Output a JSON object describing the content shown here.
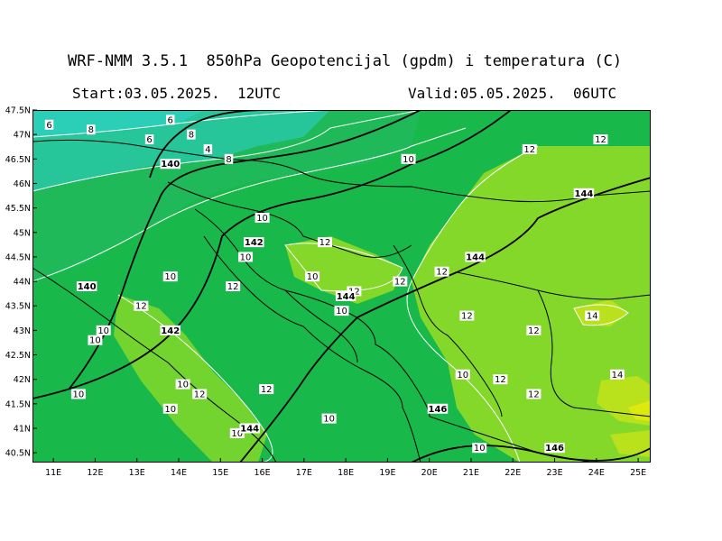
{
  "header": {
    "title": "WRF-NMM 3.5.1  850hPa Geopotencijal (gpdm) i temperatura (C)",
    "start": "Start:03.05.2025.  12UTC",
    "valid": "Valid:05.05.2025.  06UTC"
  },
  "map": {
    "lon_range": [
      10.5,
      25.3
    ],
    "lat_range": [
      40.3,
      47.5
    ],
    "lon_ticks": [
      "11E",
      "12E",
      "13E",
      "14E",
      "15E",
      "16E",
      "17E",
      "18E",
      "19E",
      "20E",
      "21E",
      "22E",
      "23E",
      "24E",
      "25E"
    ],
    "lat_ticks": [
      "47.5N",
      "47N",
      "46.5N",
      "46N",
      "45.5N",
      "45N",
      "44.5N",
      "44N",
      "43.5N",
      "43N",
      "42.5N",
      "42N",
      "41.5N",
      "41N",
      "40.5N"
    ],
    "colors": {
      "t6": "#27c59a",
      "t4": "#2bcfb7",
      "t8": "#1fb95a",
      "t10": "#19b84b",
      "t12": "#84d82a",
      "t14": "#b9e21c",
      "t16": "#dcea0d",
      "frame": "#000000",
      "border": "#000000",
      "temp_contour": "#ffffff"
    },
    "temperature_labels": [
      {
        "text": "6",
        "lon": 10.9,
        "lat": 47.2
      },
      {
        "text": "8",
        "lon": 11.9,
        "lat": 47.1
      },
      {
        "text": "6",
        "lon": 13.8,
        "lat": 47.3
      },
      {
        "text": "8",
        "lon": 14.3,
        "lat": 47.0
      },
      {
        "text": "6",
        "lon": 13.3,
        "lat": 46.9
      },
      {
        "text": "4",
        "lon": 14.7,
        "lat": 46.7
      },
      {
        "text": "8",
        "lon": 15.2,
        "lat": 46.5
      },
      {
        "text": "10",
        "lon": 19.5,
        "lat": 46.5
      },
      {
        "text": "12",
        "lon": 22.4,
        "lat": 46.7
      },
      {
        "text": "12",
        "lon": 24.1,
        "lat": 46.9
      },
      {
        "text": "10",
        "lon": 16.0,
        "lat": 45.3
      },
      {
        "text": "12",
        "lon": 17.5,
        "lat": 44.8
      },
      {
        "text": "10",
        "lon": 15.6,
        "lat": 44.5
      },
      {
        "text": "10",
        "lon": 13.8,
        "lat": 44.1
      },
      {
        "text": "10",
        "lon": 17.2,
        "lat": 44.1
      },
      {
        "text": "12",
        "lon": 15.3,
        "lat": 43.9
      },
      {
        "text": "12",
        "lon": 18.2,
        "lat": 43.8
      },
      {
        "text": "12",
        "lon": 19.3,
        "lat": 44.0
      },
      {
        "text": "12",
        "lon": 20.3,
        "lat": 44.2
      },
      {
        "text": "12",
        "lon": 13.1,
        "lat": 43.5
      },
      {
        "text": "10",
        "lon": 17.9,
        "lat": 43.4
      },
      {
        "text": "12",
        "lon": 20.9,
        "lat": 43.3
      },
      {
        "text": "14",
        "lon": 23.9,
        "lat": 43.3
      },
      {
        "text": "10",
        "lon": 12.2,
        "lat": 43.0
      },
      {
        "text": "10",
        "lon": 12.0,
        "lat": 42.8
      },
      {
        "text": "12",
        "lon": 22.5,
        "lat": 43.0
      },
      {
        "text": "10",
        "lon": 20.8,
        "lat": 42.1
      },
      {
        "text": "12",
        "lon": 21.7,
        "lat": 42.0
      },
      {
        "text": "14",
        "lon": 24.5,
        "lat": 42.1
      },
      {
        "text": "10",
        "lon": 11.6,
        "lat": 41.7
      },
      {
        "text": "10",
        "lon": 14.1,
        "lat": 41.9
      },
      {
        "text": "12",
        "lon": 14.5,
        "lat": 41.7
      },
      {
        "text": "12",
        "lon": 16.1,
        "lat": 41.8
      },
      {
        "text": "12",
        "lon": 22.5,
        "lat": 41.7
      },
      {
        "text": "10",
        "lon": 13.8,
        "lat": 41.4
      },
      {
        "text": "10",
        "lon": 17.6,
        "lat": 41.2
      },
      {
        "text": "10",
        "lon": 15.4,
        "lat": 40.9
      },
      {
        "text": "10",
        "lon": 21.2,
        "lat": 40.6
      }
    ],
    "geopotential_labels": [
      {
        "text": "140",
        "lon": 13.8,
        "lat": 46.4
      },
      {
        "text": "142",
        "lon": 15.8,
        "lat": 44.8
      },
      {
        "text": "140",
        "lon": 11.8,
        "lat": 43.9
      },
      {
        "text": "142",
        "lon": 13.8,
        "lat": 43.0
      },
      {
        "text": "144",
        "lon": 18.0,
        "lat": 43.7
      },
      {
        "text": "144",
        "lon": 21.1,
        "lat": 44.5
      },
      {
        "text": "144",
        "lon": 23.7,
        "lat": 45.8
      },
      {
        "text": "146",
        "lon": 20.2,
        "lat": 41.4
      },
      {
        "text": "144",
        "lon": 15.7,
        "lat": 41.0
      },
      {
        "text": "146",
        "lon": 23.0,
        "lat": 40.6
      }
    ]
  }
}
